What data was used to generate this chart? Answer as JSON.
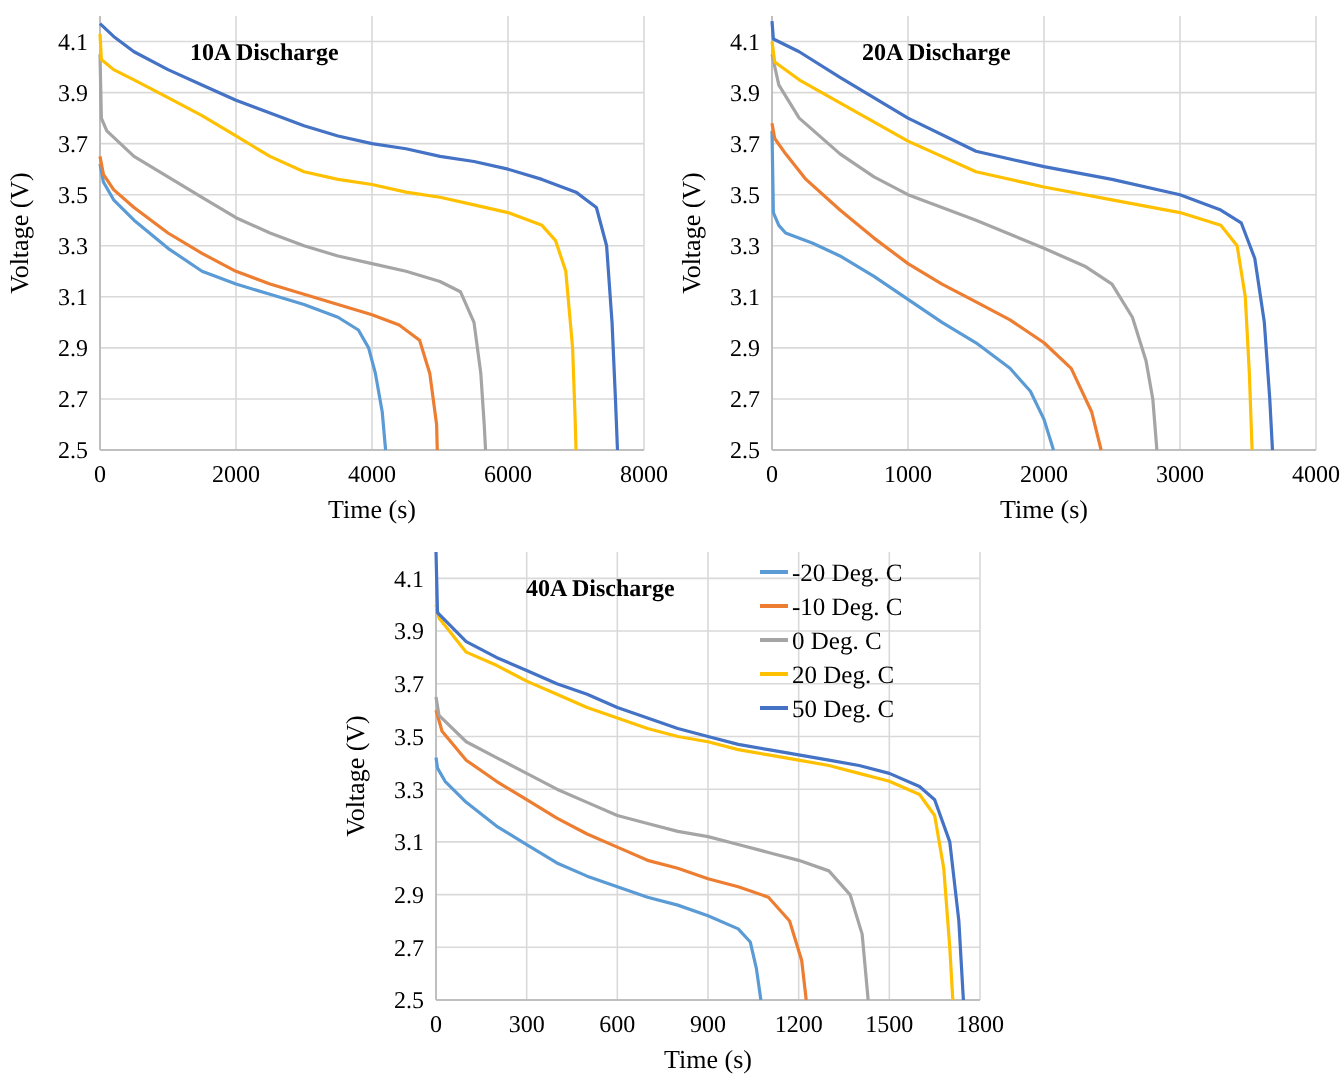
{
  "chart_data": [
    {
      "type": "line",
      "title": "10A Discharge",
      "xlabel": "Time (s)",
      "ylabel": "Voltage (V)",
      "xlim": [
        0,
        8000
      ],
      "ylim": [
        2.5,
        4.2
      ],
      "xticks": [
        0,
        2000,
        4000,
        6000,
        8000
      ],
      "yticks": [
        2.5,
        2.7,
        2.9,
        3.1,
        3.3,
        3.5,
        3.7,
        3.9,
        4.1
      ],
      "grid": true,
      "series": [
        {
          "color": "#5b9bd5",
          "x": [
            0,
            50,
            200,
            500,
            1000,
            1500,
            2000,
            2500,
            3000,
            3500,
            3800,
            3950,
            4050,
            4150,
            4200
          ],
          "values": [
            3.62,
            3.55,
            3.48,
            3.4,
            3.29,
            3.2,
            3.15,
            3.11,
            3.07,
            3.02,
            2.97,
            2.9,
            2.8,
            2.65,
            2.5
          ]
        },
        {
          "color": "#ed7d31",
          "x": [
            0,
            50,
            200,
            500,
            1000,
            1500,
            2000,
            2500,
            3000,
            3500,
            4000,
            4400,
            4700,
            4850,
            4950,
            4960
          ],
          "values": [
            3.65,
            3.58,
            3.52,
            3.45,
            3.35,
            3.27,
            3.2,
            3.15,
            3.11,
            3.07,
            3.03,
            2.99,
            2.93,
            2.8,
            2.6,
            2.5
          ]
        },
        {
          "color": "#a5a5a5",
          "x": [
            0,
            20,
            100,
            500,
            1000,
            1500,
            2000,
            2500,
            3000,
            3500,
            4000,
            4500,
            5000,
            5300,
            5500,
            5600,
            5650,
            5670
          ],
          "values": [
            4.05,
            3.8,
            3.75,
            3.65,
            3.57,
            3.49,
            3.41,
            3.35,
            3.3,
            3.26,
            3.23,
            3.2,
            3.16,
            3.12,
            3.0,
            2.8,
            2.6,
            2.5
          ]
        },
        {
          "color": "#ffc000",
          "x": [
            0,
            20,
            200,
            500,
            1000,
            1500,
            2000,
            2500,
            3000,
            3500,
            4000,
            4500,
            5000,
            5500,
            6000,
            6500,
            6700,
            6850,
            6950,
            6990,
            7000
          ],
          "values": [
            4.13,
            4.03,
            3.99,
            3.95,
            3.88,
            3.81,
            3.73,
            3.65,
            3.59,
            3.56,
            3.54,
            3.51,
            3.49,
            3.46,
            3.43,
            3.38,
            3.32,
            3.2,
            2.9,
            2.6,
            2.5
          ]
        },
        {
          "color": "#4472c4",
          "x": [
            0,
            200,
            500,
            1000,
            1500,
            2000,
            2500,
            3000,
            3500,
            4000,
            4500,
            5000,
            5500,
            6000,
            6500,
            7000,
            7300,
            7450,
            7530,
            7580,
            7610
          ],
          "values": [
            4.17,
            4.12,
            4.06,
            3.99,
            3.93,
            3.87,
            3.82,
            3.77,
            3.73,
            3.7,
            3.68,
            3.65,
            3.63,
            3.6,
            3.56,
            3.51,
            3.45,
            3.3,
            3.0,
            2.7,
            2.5
          ]
        }
      ]
    },
    {
      "type": "line",
      "title": "20A Discharge",
      "xlabel": "Time (s)",
      "ylabel": "Voltage (V)",
      "xlim": [
        0,
        4000
      ],
      "ylim": [
        2.5,
        4.2
      ],
      "xticks": [
        0,
        1000,
        2000,
        3000,
        4000
      ],
      "yticks": [
        2.5,
        2.7,
        2.9,
        3.1,
        3.3,
        3.5,
        3.7,
        3.9,
        4.1
      ],
      "grid": true,
      "series": [
        {
          "color": "#5b9bd5",
          "x": [
            0,
            10,
            50,
            100,
            300,
            500,
            750,
            1000,
            1250,
            1500,
            1750,
            1900,
            2000,
            2070
          ],
          "values": [
            3.75,
            3.43,
            3.38,
            3.35,
            3.31,
            3.26,
            3.18,
            3.09,
            3.0,
            2.92,
            2.82,
            2.73,
            2.62,
            2.5
          ]
        },
        {
          "color": "#ed7d31",
          "x": [
            0,
            20,
            100,
            250,
            500,
            750,
            1000,
            1250,
            1500,
            1750,
            2000,
            2200,
            2350,
            2420
          ],
          "values": [
            3.78,
            3.72,
            3.66,
            3.56,
            3.44,
            3.33,
            3.23,
            3.15,
            3.08,
            3.01,
            2.92,
            2.82,
            2.65,
            2.5
          ]
        },
        {
          "color": "#a5a5a5",
          "x": [
            0,
            50,
            200,
            500,
            750,
            1000,
            1500,
            2000,
            2300,
            2500,
            2650,
            2750,
            2800,
            2830
          ],
          "values": [
            4.05,
            3.93,
            3.8,
            3.66,
            3.57,
            3.5,
            3.4,
            3.29,
            3.22,
            3.15,
            3.02,
            2.85,
            2.7,
            2.5
          ]
        },
        {
          "color": "#ffc000",
          "x": [
            0,
            20,
            200,
            500,
            1000,
            1500,
            2000,
            2500,
            3000,
            3300,
            3420,
            3480,
            3510,
            3530
          ],
          "values": [
            4.1,
            4.02,
            3.95,
            3.86,
            3.71,
            3.59,
            3.53,
            3.48,
            3.43,
            3.38,
            3.3,
            3.1,
            2.8,
            2.5
          ]
        },
        {
          "color": "#4472c4",
          "x": [
            0,
            10,
            200,
            500,
            1000,
            1500,
            2000,
            2500,
            3000,
            3300,
            3450,
            3550,
            3620,
            3660,
            3680
          ],
          "values": [
            4.18,
            4.11,
            4.06,
            3.96,
            3.8,
            3.67,
            3.61,
            3.56,
            3.5,
            3.44,
            3.39,
            3.25,
            3.0,
            2.7,
            2.5
          ]
        }
      ]
    },
    {
      "type": "line",
      "title": "40A Discharge",
      "xlabel": "Time (s)",
      "ylabel": "Voltage (V)",
      "xlim": [
        0,
        1800
      ],
      "ylim": [
        2.5,
        4.2
      ],
      "xticks": [
        0,
        300,
        600,
        900,
        1200,
        1500,
        1800
      ],
      "yticks": [
        2.5,
        2.7,
        2.9,
        3.1,
        3.3,
        3.5,
        3.7,
        3.9,
        4.1
      ],
      "grid": true,
      "legend": "top right",
      "series": [
        {
          "name": "-20 Deg. C",
          "color": "#5b9bd5",
          "x": [
            0,
            5,
            30,
            100,
            200,
            300,
            400,
            500,
            600,
            700,
            800,
            900,
            1000,
            1040,
            1060,
            1075
          ],
          "values": [
            3.42,
            3.38,
            3.33,
            3.25,
            3.16,
            3.09,
            3.02,
            2.97,
            2.93,
            2.89,
            2.86,
            2.82,
            2.77,
            2.72,
            2.62,
            2.5
          ]
        },
        {
          "name": "-10 Deg. C",
          "color": "#ed7d31",
          "x": [
            0,
            20,
            100,
            200,
            300,
            400,
            500,
            600,
            700,
            800,
            900,
            1000,
            1100,
            1170,
            1210,
            1225
          ],
          "values": [
            3.6,
            3.52,
            3.41,
            3.33,
            3.26,
            3.19,
            3.13,
            3.08,
            3.03,
            3.0,
            2.96,
            2.93,
            2.89,
            2.8,
            2.65,
            2.5
          ]
        },
        {
          "name": "0 Deg. C",
          "color": "#a5a5a5",
          "x": [
            0,
            10,
            100,
            200,
            300,
            400,
            500,
            600,
            700,
            800,
            900,
            1000,
            1100,
            1200,
            1300,
            1370,
            1410,
            1430
          ],
          "values": [
            3.65,
            3.58,
            3.48,
            3.42,
            3.36,
            3.3,
            3.25,
            3.2,
            3.17,
            3.14,
            3.12,
            3.09,
            3.06,
            3.03,
            2.99,
            2.9,
            2.75,
            2.5
          ]
        },
        {
          "name": "20 Deg. C",
          "color": "#ffc000",
          "x": [
            0,
            10,
            100,
            200,
            300,
            400,
            500,
            600,
            700,
            800,
            900,
            1000,
            1100,
            1200,
            1300,
            1400,
            1500,
            1600,
            1650,
            1680,
            1700,
            1710
          ],
          "values": [
            4.0,
            3.95,
            3.82,
            3.77,
            3.71,
            3.66,
            3.61,
            3.57,
            3.53,
            3.5,
            3.48,
            3.45,
            3.43,
            3.41,
            3.39,
            3.36,
            3.33,
            3.28,
            3.2,
            3.0,
            2.7,
            2.5
          ]
        },
        {
          "name": "50 Deg. C",
          "color": "#4472c4",
          "x": [
            0,
            5,
            100,
            200,
            300,
            400,
            500,
            600,
            700,
            800,
            900,
            1000,
            1100,
            1200,
            1300,
            1400,
            1500,
            1600,
            1650,
            1700,
            1730,
            1745
          ],
          "values": [
            4.2,
            3.97,
            3.86,
            3.8,
            3.75,
            3.7,
            3.66,
            3.61,
            3.57,
            3.53,
            3.5,
            3.47,
            3.45,
            3.43,
            3.41,
            3.39,
            3.36,
            3.31,
            3.26,
            3.1,
            2.8,
            2.5
          ]
        }
      ]
    }
  ]
}
